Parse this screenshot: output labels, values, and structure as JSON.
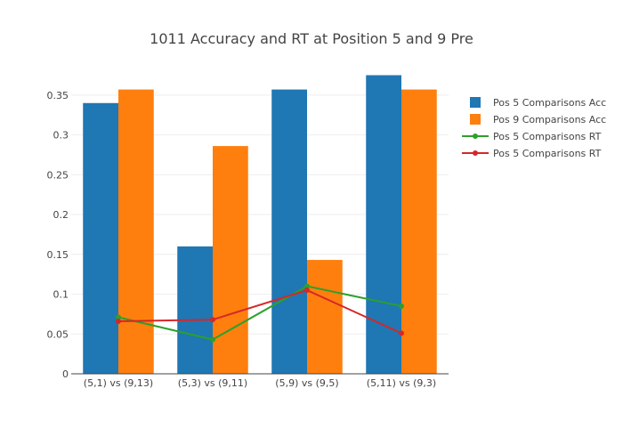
{
  "chart_data": {
    "type": "bar",
    "title": "1011 Accuracy and RT at Position 5 and 9 Pre",
    "xlabel": "",
    "ylabel": "",
    "categories": [
      "(5,1) vs (9,13)",
      "(5,3) vs (9,11)",
      "(5,9) vs (9,5)",
      "(5,11) vs (9,3)"
    ],
    "ylim": [
      0,
      0.38
    ],
    "yticks": [
      "0",
      "0.05",
      "0.1",
      "0.15",
      "0.2",
      "0.25",
      "0.3",
      "0.35"
    ],
    "grid": true,
    "legend_position": "top-right",
    "series": [
      {
        "name": "Pos 5 Comparisons Acc",
        "type": "bar",
        "color": "#1f77b4",
        "values": [
          0.34,
          0.16,
          0.357,
          0.375
        ]
      },
      {
        "name": "Pos 9 Comparisons Acc",
        "type": "bar",
        "color": "#ff7f0e",
        "values": [
          0.357,
          0.286,
          0.143,
          0.357
        ]
      },
      {
        "name": "Pos 5 Comparisons RT",
        "type": "line",
        "color": "#2ca02c",
        "values": [
          0.071,
          0.043,
          0.11,
          0.085
        ]
      },
      {
        "name": "Pos 5 Comparisons RT",
        "type": "line",
        "color": "#d62728",
        "values": [
          0.066,
          0.068,
          0.105,
          0.051
        ]
      }
    ]
  }
}
